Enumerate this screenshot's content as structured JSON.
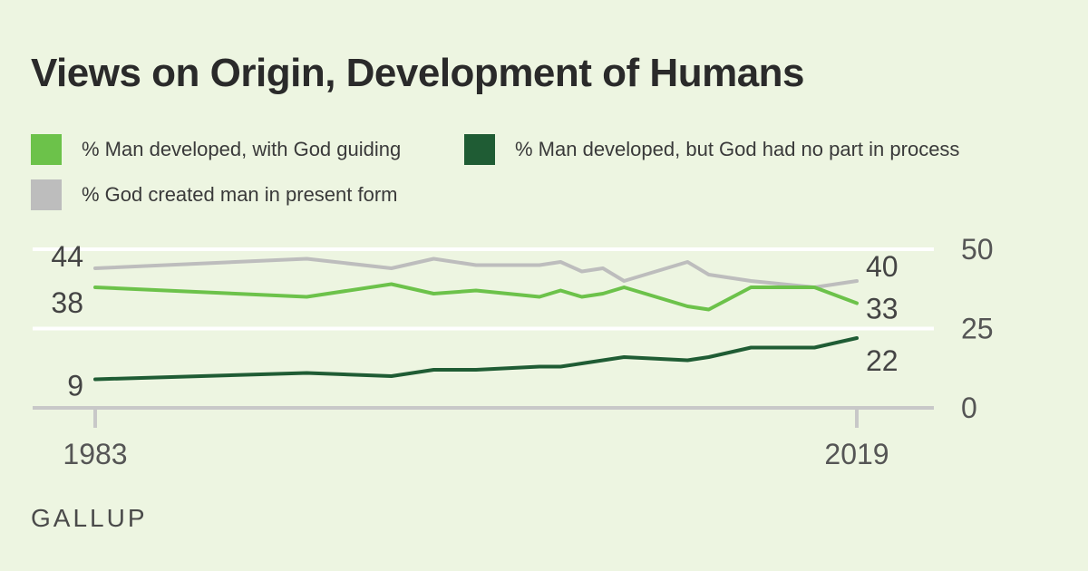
{
  "chart_data": {
    "type": "line",
    "title": "Views on Origin, Development of Humans",
    "x_tick_labels": [
      "1983",
      "2019"
    ],
    "y_ticks": [
      0,
      25,
      50
    ],
    "ylim": [
      0,
      50
    ],
    "xlim": [
      1983,
      2019
    ],
    "grid": true,
    "legend_placement": "top",
    "series": [
      {
        "name": "% Man developed, with God guiding",
        "color": "#6cc24a",
        "x": [
          1983,
          1993,
          1997,
          1999,
          2001,
          2004,
          2005,
          2006,
          2007,
          2008,
          2011,
          2012,
          2014,
          2017,
          2019
        ],
        "values": [
          38,
          35,
          39,
          36,
          37,
          35,
          37,
          35,
          36,
          38,
          32,
          31,
          38,
          38,
          33
        ],
        "start_label": "38",
        "end_label": "33"
      },
      {
        "name": "% Man developed, but God had no part in process",
        "color": "#1f5c34",
        "x": [
          1983,
          1993,
          1997,
          1999,
          2001,
          2004,
          2005,
          2006,
          2007,
          2008,
          2011,
          2012,
          2014,
          2017,
          2019
        ],
        "values": [
          9,
          11,
          10,
          12,
          12,
          13,
          13,
          14,
          15,
          16,
          15,
          16,
          19,
          19,
          22
        ],
        "start_label": "9",
        "end_label": "22"
      },
      {
        "name": "% God created man in present form",
        "color": "#bdbdbd",
        "x": [
          1983,
          1993,
          1997,
          1999,
          2001,
          2004,
          2005,
          2006,
          2007,
          2008,
          2011,
          2012,
          2014,
          2017,
          2019
        ],
        "values": [
          44,
          47,
          44,
          47,
          45,
          45,
          46,
          43,
          44,
          40,
          46,
          42,
          40,
          38,
          40
        ],
        "start_label": "44",
        "end_label": "40"
      }
    ]
  },
  "source": "GALLUP"
}
